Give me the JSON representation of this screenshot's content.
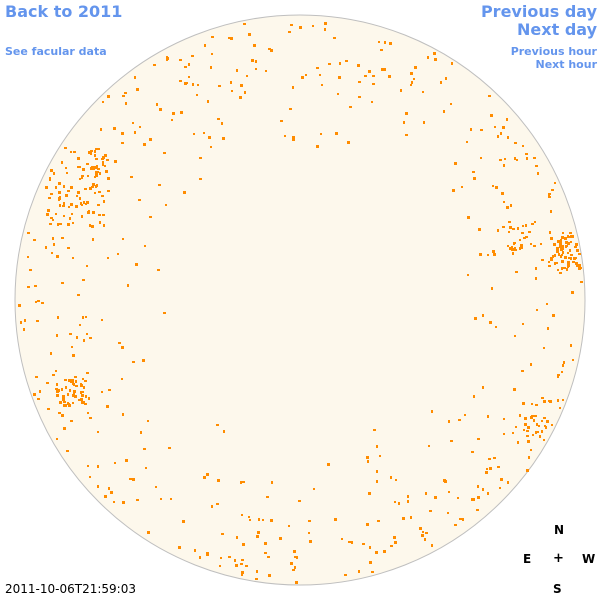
{
  "nav": {
    "back_label": "Back to 2011",
    "facular_label": "See facular data",
    "previous_day_label": "Previous day",
    "next_day_label": "Next day",
    "previous_hour_label": "Previous hour",
    "next_hour_label": "Next hour"
  },
  "compass": {
    "north": "N",
    "east": "E",
    "center": "+",
    "west": "W",
    "south": "S"
  },
  "timestamp": "2011-10-06T21:59:03",
  "colors": {
    "disk_fill": "#fdf8ec",
    "disk_stroke": "#bfbfbf",
    "facula": "#ff8c00",
    "link": "#6495ed"
  }
}
